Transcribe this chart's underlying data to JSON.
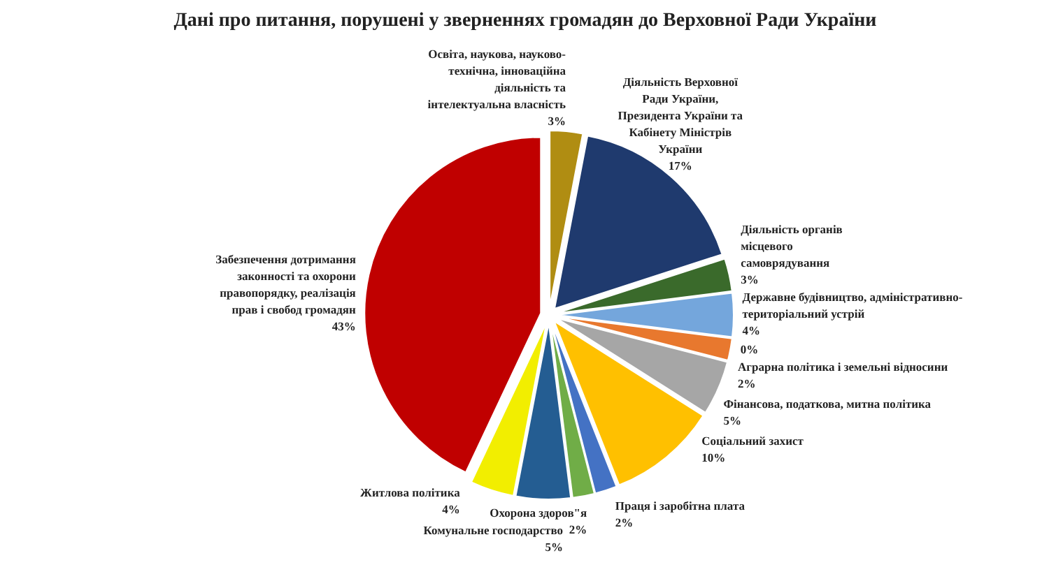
{
  "chart_data": {
    "type": "pie",
    "title": "Дані про питання, порушені у зверненнях громадян до Верховної Ради України",
    "categories": [
      "Освіта, наукова, науково-технічна, інноваційна діяльність та інтелектуальна власність",
      "Діяльність Верховної Ради України, Президента України та Кабінету Міністрів України",
      "Діяльність органів місцевого самоврядування",
      "Державне будівництво, адміністративно-територіальний устрій",
      null,
      "Аграрна політика і земельні відносини",
      "Фінансова, податкова, митна політика",
      "Соціальний захист",
      "Праця і заробітна плата",
      "Охорона здоров\"я",
      "Комунальне господарство",
      "Житлова політика",
      "Забезпечення дотримання законності та охорони правопорядку, реалізація прав і свобод громадян"
    ],
    "values": [
      3,
      17,
      3,
      4,
      0,
      2,
      5,
      10,
      2,
      2,
      5,
      4,
      43
    ],
    "colors": [
      "#b08d12",
      "#1f3a6e",
      "#3a6a2b",
      "#74a6dc",
      null,
      "#e8782e",
      "#a6a6a6",
      "#ffc000",
      "#4472c4",
      "#70ad47",
      "#245d92",
      "#f2ee00",
      "#c00000"
    ],
    "value_labels": [
      "3%",
      "17%",
      "3%",
      "4%",
      "0%",
      "2%",
      "5%",
      "10%",
      "2%",
      "2%",
      "5%",
      "4%",
      "43%"
    ]
  }
}
